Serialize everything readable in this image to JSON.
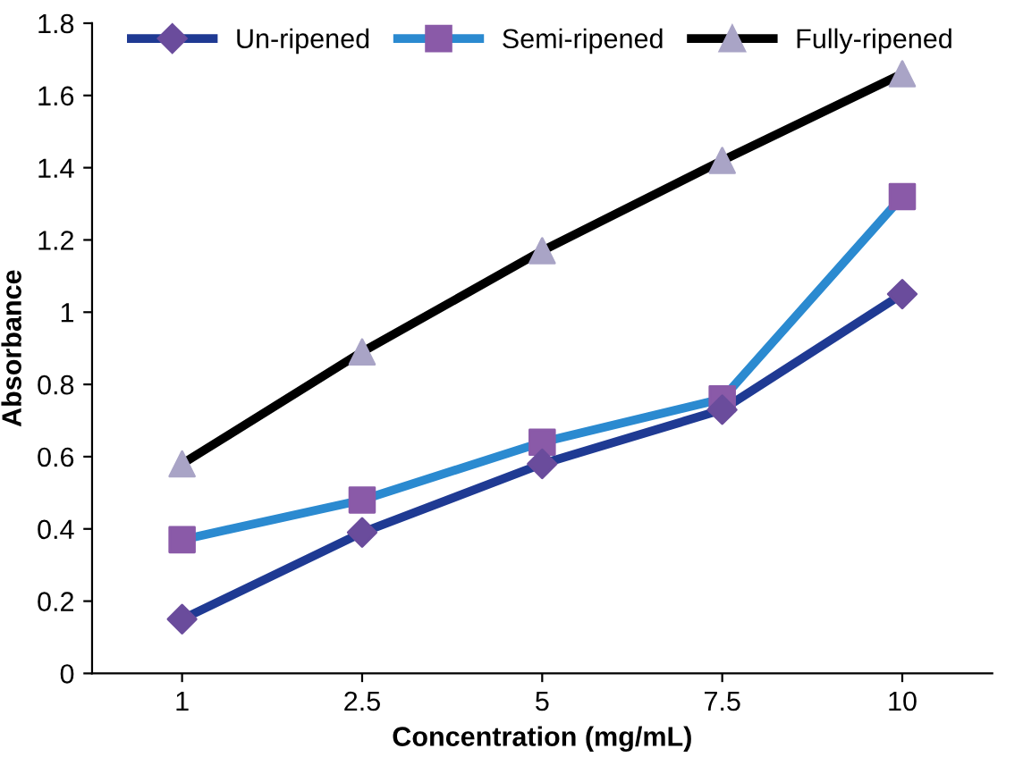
{
  "chart_data": {
    "type": "line",
    "xlabel": "Concentration (mg/mL)",
    "ylabel": "Absorbance",
    "categories": [
      "1",
      "2.5",
      "5",
      "7.5",
      "10"
    ],
    "series": [
      {
        "name": "Un-ripened",
        "color": "#1f3a93",
        "marker": "diamond",
        "colors": [
          "#6a4c9c",
          "#6a4c9c",
          "#6a4c9c",
          "#6a4c9c",
          "#6a4c9c"
        ],
        "values": [
          0.15,
          0.39,
          0.58,
          0.73,
          1.05
        ]
      },
      {
        "name": "Semi-ripened",
        "color": "#2b8ad0",
        "marker": "square",
        "colors": [
          "#8a5aa8",
          "#8a5aa8",
          "#8a5aa8",
          "#8a5aa8",
          "#8a5aa8"
        ],
        "values": [
          0.37,
          0.48,
          0.64,
          0.76,
          1.32
        ]
      },
      {
        "name": "Fully-ripened",
        "color": "#000000",
        "marker": "triangle",
        "colors": [
          "#a9a4c6",
          "#a9a4c6",
          "#a9a4c6",
          "#a9a4c6",
          "#a9a4c6"
        ],
        "values": [
          0.58,
          0.89,
          1.17,
          1.42,
          1.66
        ]
      }
    ],
    "ylim": [
      0,
      1.8
    ],
    "yticks": [
      0,
      0.2,
      0.4,
      0.6,
      0.8,
      1,
      1.2,
      1.4,
      1.6,
      1.8
    ],
    "grid": false,
    "legend": "top",
    "line_style": "solid"
  }
}
